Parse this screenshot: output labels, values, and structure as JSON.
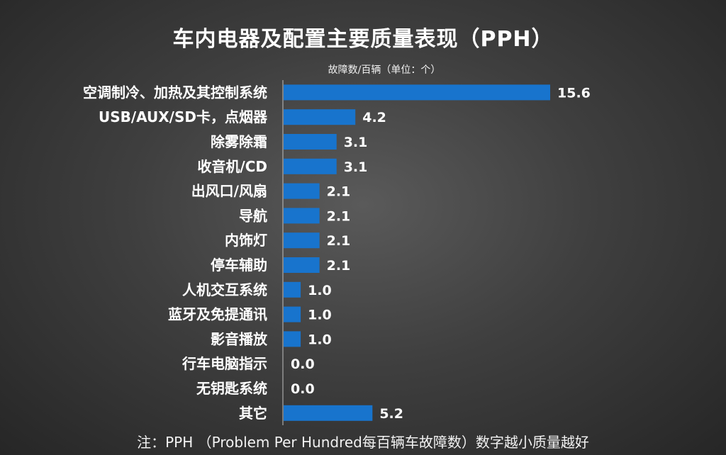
{
  "title": "车内电器及配置主要质量表现（PPH）",
  "subtitle": "故障数/百辆（单位：个）",
  "footnote": "注：PPH （Problem Per Hundred每百辆车故障数）数字越小质量越好",
  "colors": {
    "bar": "#1874CD",
    "text": "#FFFFFF"
  },
  "chart_data": {
    "type": "bar",
    "orientation": "horizontal",
    "categories": [
      "空调制冷、加热及其控制系统",
      "USB/AUX/SD卡，点烟器",
      "除雾除霜",
      "收音机/CD",
      "出风口/风扇",
      "导航",
      "内饰灯",
      "停车辅助",
      "人机交互系统",
      "蓝牙及免提通讯",
      "影音播放",
      "行车电脑指示",
      "无钥匙系统",
      "其它"
    ],
    "values": [
      15.6,
      4.2,
      3.1,
      3.1,
      2.1,
      2.1,
      2.1,
      2.1,
      1.0,
      1.0,
      1.0,
      0.0,
      0.0,
      5.2
    ],
    "value_labels": [
      "15.6",
      "4.2",
      "3.1",
      "3.1",
      "2.1",
      "2.1",
      "2.1",
      "2.1",
      "1.0",
      "1.0",
      "1.0",
      "0.0",
      "0.0",
      "5.2"
    ],
    "xlim": [
      0,
      15.6
    ],
    "grid": false,
    "legend": "none"
  }
}
